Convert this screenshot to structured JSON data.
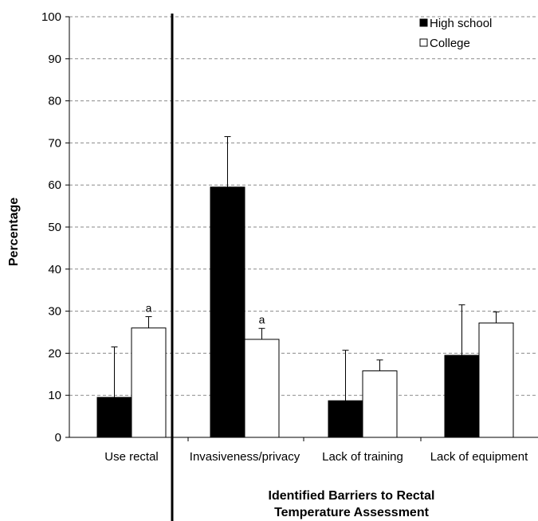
{
  "chart_data": {
    "type": "bar",
    "categories": [
      "Use rectal",
      "Invasiveness/privacy",
      "Lack of training",
      "Lack of equipment"
    ],
    "series": [
      {
        "name": "High school",
        "color": "#000000",
        "values": [
          9.5,
          59.5,
          8.7,
          19.5
        ],
        "error": [
          12.0,
          12.0,
          12.0,
          12.0
        ]
      },
      {
        "name": "College",
        "color": "#ffffff",
        "values": [
          26.0,
          23.3,
          15.8,
          27.2
        ],
        "error": [
          2.7,
          2.6,
          2.6,
          2.6
        ]
      }
    ],
    "annotations": [
      {
        "category": "Use rectal",
        "series": "College",
        "text": "a"
      },
      {
        "category": "Invasiveness/privacy",
        "series": "College",
        "text": "a"
      }
    ],
    "ylabel": "Percentage",
    "xlabel_lines": [
      "Identified Barriers to Rectal",
      "Temperature Assessment"
    ],
    "ylim": [
      0,
      100
    ],
    "yticks": [
      0,
      10,
      20,
      30,
      40,
      50,
      60,
      70,
      80,
      90,
      100
    ],
    "grid": "horizontal dashed",
    "legend_position": "top-right",
    "separator_after_category": "Use rectal"
  }
}
